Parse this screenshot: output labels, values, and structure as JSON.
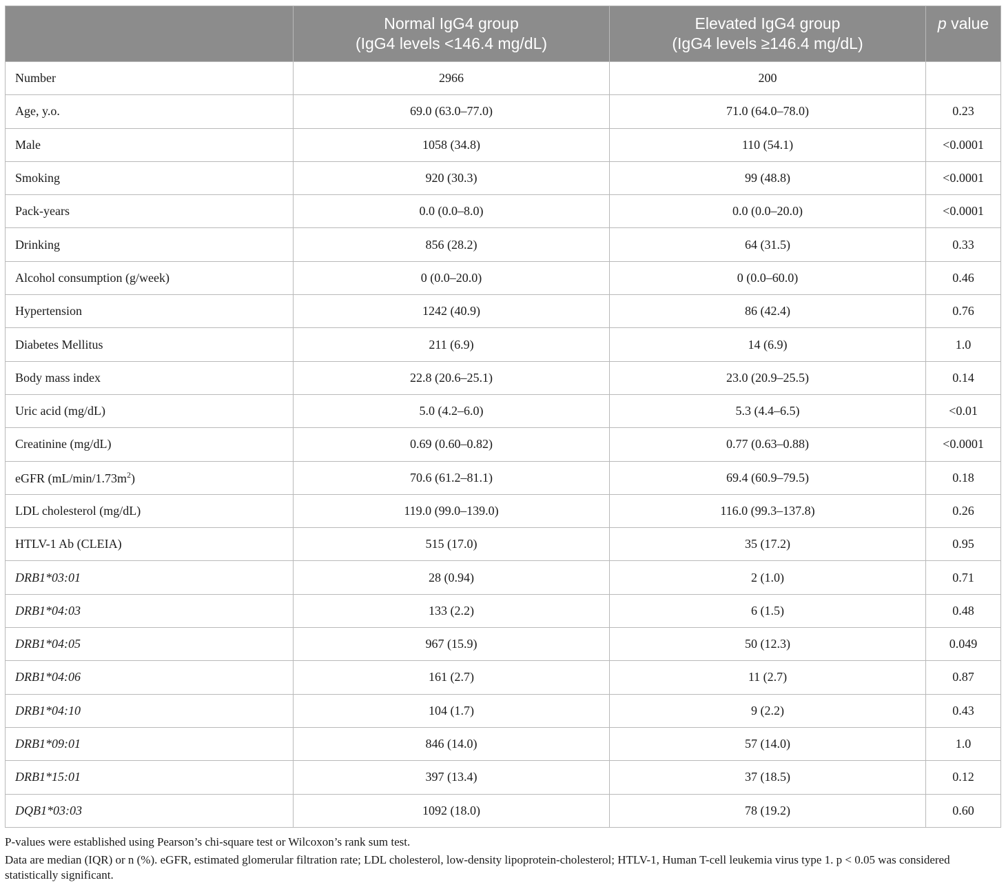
{
  "table": {
    "header": {
      "col0": "",
      "col1_line1": "Normal IgG4 group",
      "col1_line2": "(IgG4 levels <146.4 mg/dL)",
      "col2_line1": "Elevated IgG4 group",
      "col2_line2": "(IgG4 levels ≥146.4 mg/dL)",
      "col3_italic": "p",
      "col3_rest": " value"
    },
    "rows": [
      {
        "label": "Number",
        "normal": "2966",
        "elevated": "200",
        "p": ""
      },
      {
        "label": "Age, y.o.",
        "normal": "69.0 (63.0–77.0)",
        "elevated": "71.0 (64.0–78.0)",
        "p": "0.23"
      },
      {
        "label": "Male",
        "normal": "1058 (34.8)",
        "elevated": "110 (54.1)",
        "p": "<0.0001"
      },
      {
        "label": "Smoking",
        "normal": "920 (30.3)",
        "elevated": "99 (48.8)",
        "p": "<0.0001"
      },
      {
        "label": "Pack-years",
        "normal": "0.0 (0.0–8.0)",
        "elevated": "0.0 (0.0–20.0)",
        "p": "<0.0001"
      },
      {
        "label": "Drinking",
        "normal": "856 (28.2)",
        "elevated": "64 (31.5)",
        "p": "0.33"
      },
      {
        "label": "Alcohol consumption (g/week)",
        "normal": "0 (0.0–20.0)",
        "elevated": "0 (0.0–60.0)",
        "p": "0.46"
      },
      {
        "label": "Hypertension",
        "normal": "1242 (40.9)",
        "elevated": "86 (42.4)",
        "p": "0.76"
      },
      {
        "label": "Diabetes Mellitus",
        "normal": "211 (6.9)",
        "elevated": "14 (6.9)",
        "p": "1.0"
      },
      {
        "label": "Body mass index",
        "normal": "22.8 (20.6–25.1)",
        "elevated": "23.0 (20.9–25.5)",
        "p": "0.14"
      },
      {
        "label": "Uric acid (mg/dL)",
        "normal": "5.0 (4.2–6.0)",
        "elevated": "5.3 (4.4–6.5)",
        "p": "<0.01"
      },
      {
        "label": "Creatinine (mg/dL)",
        "normal": "0.69 (0.60–0.82)",
        "elevated": "0.77 (0.63–0.88)",
        "p": "<0.0001"
      },
      {
        "label": "eGFR (mL/min/1.73m",
        "label_sup": "2",
        "label_after": ")",
        "normal": "70.6 (61.2–81.1)",
        "elevated": "69.4 (60.9–79.5)",
        "p": "0.18"
      },
      {
        "label": "LDL cholesterol (mg/dL)",
        "normal": "119.0 (99.0–139.0)",
        "elevated": "116.0 (99.3–137.8)",
        "p": "0.26"
      },
      {
        "label": "HTLV-1 Ab (CLEIA)",
        "normal": "515 (17.0)",
        "elevated": "35 (17.2)",
        "p": "0.95"
      },
      {
        "label": "DRB1*03:01",
        "italic": true,
        "normal": "28 (0.94)",
        "elevated": "2 (1.0)",
        "p": "0.71"
      },
      {
        "label": "DRB1*04:03",
        "italic": true,
        "normal": "133 (2.2)",
        "elevated": "6 (1.5)",
        "p": "0.48"
      },
      {
        "label": "DRB1*04:05",
        "italic": true,
        "normal": "967 (15.9)",
        "elevated": "50 (12.3)",
        "p": "0.049"
      },
      {
        "label": "DRB1*04:06",
        "italic": true,
        "normal": "161 (2.7)",
        "elevated": "11 (2.7)",
        "p": "0.87"
      },
      {
        "label": "DRB1*04:10",
        "italic": true,
        "normal": "104 (1.7)",
        "elevated": "9 (2.2)",
        "p": "0.43"
      },
      {
        "label": "DRB1*09:01",
        "italic": true,
        "normal": "846 (14.0)",
        "elevated": "57 (14.0)",
        "p": "1.0"
      },
      {
        "label": "DRB1*15:01",
        "italic": true,
        "normal": "397 (13.4)",
        "elevated": "37 (18.5)",
        "p": "0.12"
      },
      {
        "label": "DQB1*03:03",
        "italic": true,
        "normal": "1092 (18.0)",
        "elevated": "78 (19.2)",
        "p": "0.60"
      }
    ]
  },
  "footnotes": {
    "line1": "P-values were established using Pearson’s chi-square test or Wilcoxon’s rank sum test.",
    "line2": "Data are median (IQR) or n (%). eGFR, estimated glomerular filtration rate; LDL cholesterol, low-density lipoprotein-cholesterol; HTLV-1, Human T-cell leukemia virus type 1. p < 0.05 was considered statistically significant."
  },
  "colors": {
    "header_bg": "#8c8c8c",
    "header_text": "#ffffff",
    "grid": "#b9b9b9"
  }
}
